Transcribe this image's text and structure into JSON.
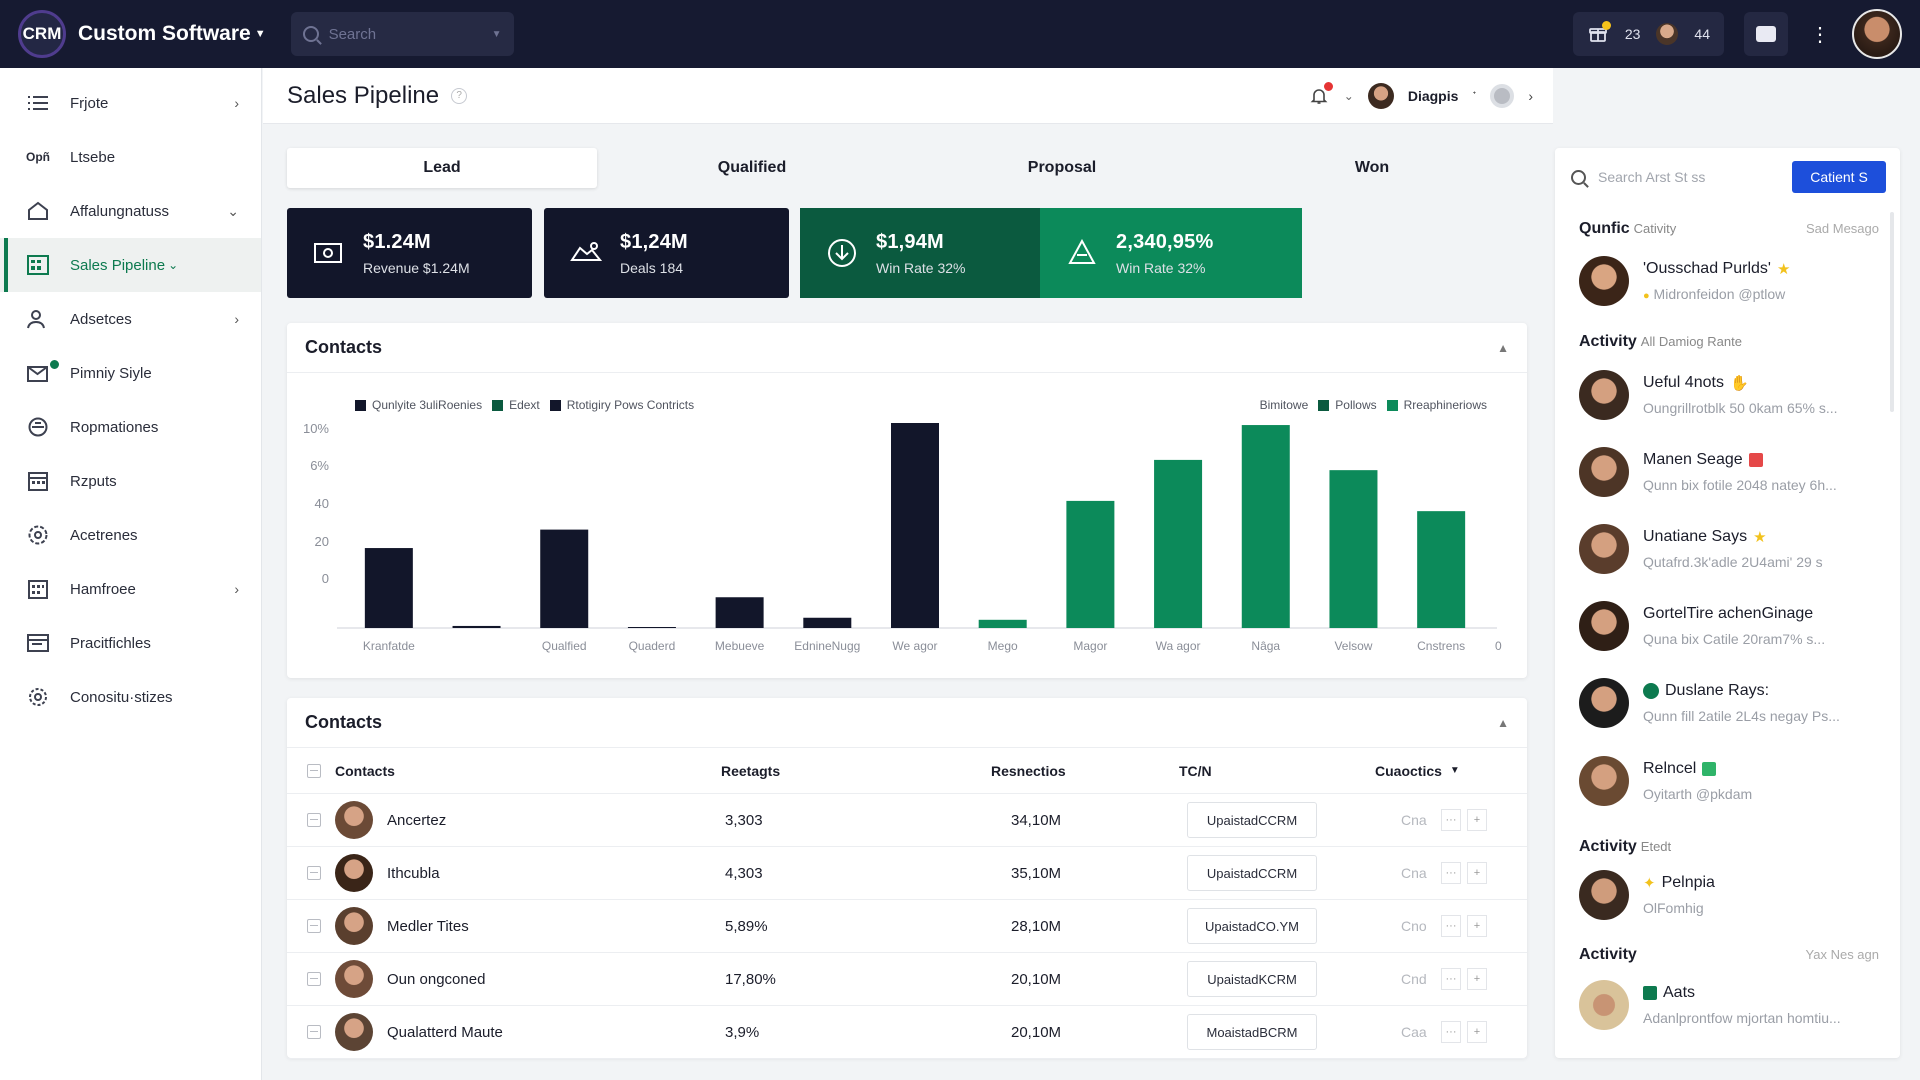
{
  "topbar": {
    "logo": "CRM",
    "brand": "Custom Software",
    "search_placeholder": "Search",
    "count_a": "23",
    "count_b": "44"
  },
  "sidebar": {
    "items": [
      {
        "label": "Frjote",
        "icon": "list-icon",
        "chevron": true
      },
      {
        "label": "Ltsebe",
        "icon_text": "Opñ",
        "chevron": false
      },
      {
        "label": "Affalungnatuss",
        "icon": "home-icon",
        "chevron": "down"
      },
      {
        "label": "Sales Pipeline",
        "icon": "spreadsheet-icon",
        "chevron": false,
        "active": true
      },
      {
        "label": "Adsetces",
        "icon": "users-icon",
        "chevron": true
      },
      {
        "label": "Pimniy Siyle",
        "icon": "mail-icon",
        "chevron": false,
        "badge": true
      },
      {
        "label": "Ropmationes",
        "icon": "shield-icon",
        "chevron": false
      },
      {
        "label": "Rzputs",
        "icon": "calendar-icon",
        "chevron": false
      },
      {
        "label": "Acetrenes",
        "icon": "settings-icon",
        "chevron": false
      },
      {
        "label": "Hamfroee",
        "icon": "grid-calendar-icon",
        "chevron": true
      },
      {
        "label": "Pracitfichles",
        "icon": "table-icon",
        "chevron": false
      },
      {
        "label": "Conositu·stizes",
        "icon": "gear-icon",
        "chevron": false
      }
    ]
  },
  "header": {
    "title": "Sales Pipeline",
    "help": "?",
    "user": "Diagpis"
  },
  "stages": [
    "Lead",
    "Qualified",
    "Proposal",
    "Won"
  ],
  "kpis": [
    {
      "value": "$1.24M",
      "label": "Revenue $1.24M",
      "icon": "money-icon",
      "bg": "#12162a"
    },
    {
      "value": "$1,24M",
      "label": "Deals 184",
      "icon": "handshake-icon",
      "bg": "#12162a"
    },
    {
      "value": "$1,94M",
      "label": "Win Rate 32%",
      "icon": "download-circle-icon",
      "bg": "#0b5a3f"
    },
    {
      "value": "2,340,95%",
      "label": "Win Rate 32%",
      "icon": "trophy-icon",
      "bg": "#0c8a5a"
    }
  ],
  "chart_card": {
    "title": "Contacts",
    "legend_left": [
      "Qunlyite 3uliRoenies",
      "Edext",
      "Rtotigiry Pows Contricts"
    ],
    "legend_right": [
      "Bimitowe",
      "Pollows",
      "Rreaphineriows"
    ]
  },
  "chart_data": {
    "type": "bar",
    "categories": [
      "Kranfatde",
      "",
      "Qualfied",
      "Quaderd",
      "Mebueve",
      "EdnineNugg",
      "We agor",
      "Mego",
      "Magor",
      "Wa agor",
      "Nâga",
      "Velsow",
      "Cnstrens"
    ],
    "values": [
      39,
      1,
      48,
      0,
      15,
      5,
      100,
      4,
      62,
      82,
      99,
      77,
      57
    ],
    "colors": [
      "#12162a",
      "#12162a",
      "#12162a",
      "#12162a",
      "#12162a",
      "#12162a",
      "#12162a",
      "#0c8a5a",
      "#0c8a5a",
      "#0c8a5a",
      "#0c8a5a",
      "#0c8a5a",
      "#0c8a5a"
    ],
    "y_tick_labels": [
      "10%",
      "6%",
      "40",
      "20",
      "0"
    ],
    "x_end_label": "0",
    "ylim": [
      0,
      100
    ],
    "grid": false
  },
  "contacts": {
    "title": "Contacts",
    "columns": [
      "Contacts",
      "Reetagts",
      "Resnectios",
      "TC/N",
      "Cuaoctics"
    ],
    "rows": [
      {
        "name": "Ancertez",
        "c2": "3,303",
        "c3": "34,10M",
        "tag": "UpaistadCCRM",
        "c5": "Cna"
      },
      {
        "name": "Ithcubla",
        "c2": "4,303",
        "c3": "35,10M",
        "tag": "UpaistadCCRM",
        "c5": "Cna"
      },
      {
        "name": "Medler Tites",
        "c2": "5,89%",
        "c3": "28,10M",
        "tag": "UpaistadCO.YM",
        "c5": "Cno"
      },
      {
        "name": "Oun ongconed",
        "c2": "17,80%",
        "c3": "20,10M",
        "tag": "UpaistadKCRM",
        "c5": "Cnd"
      },
      {
        "name": "Qualatterd Maute",
        "c2": "3,9%",
        "c3": "20,10M",
        "tag": "MoaistadBCRM",
        "c5": "Caa"
      }
    ]
  },
  "right_panel": {
    "search_placeholder": "Search Arst St ss",
    "button": "Catient S",
    "sec1": {
      "title": "Qunfic",
      "sub": "Cativity",
      "right": "Sad Mesago"
    },
    "item1": {
      "name": "'Ousschad Purlds'",
      "desc": "Midronfeidon @ptlow"
    },
    "sec2": {
      "title": "Activity",
      "sub": "All Damiog Rante"
    },
    "items": [
      {
        "name": "Ueful 4nots",
        "desc": "Oungrillrotblk 50 0kam 65% s..."
      },
      {
        "name": "Manen Seage",
        "desc": "Qunn bix fotile 2048 natey 6h..."
      },
      {
        "name": "Unatiane Says",
        "desc": "Qutafrd.3k'adle 2U4ami' 29 s"
      },
      {
        "name": "GortelTire achenGinage",
        "desc": "Quna bix Catile 20ram7% s..."
      },
      {
        "name": "Duslane Rays:",
        "desc": "Qunn fill 2atile 2L4s negay Ps..."
      },
      {
        "name": "Relncel",
        "desc": "Oyitarth @pkdam"
      }
    ],
    "sec3": {
      "title": "Activity",
      "sub": "Etedt"
    },
    "item3": {
      "name": "Pelnpia",
      "desc": "OlFomhig"
    },
    "sec4": {
      "title": "Activity",
      "right": "Yax Nes agn"
    },
    "item4": {
      "name": "Aats",
      "desc": "Adanlprontfow mjortan homtiu..."
    }
  }
}
